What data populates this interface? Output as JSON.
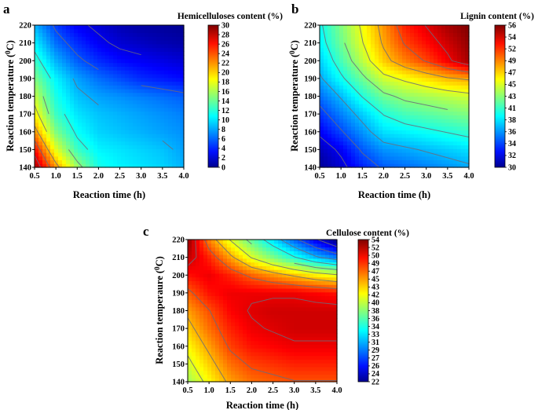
{
  "chart_data": [
    {
      "type": "heatmap",
      "panel": "a",
      "title": "Hemicelluloses content (%)",
      "xlabel": "Reaction time (h)",
      "ylabel_prefix": "Reaction temperature (",
      "ylabel_sup": "0",
      "ylabel_suffix": "C)",
      "xlim": [
        0.5,
        4.0
      ],
      "ylim": [
        140,
        220
      ],
      "x_ticks": [
        "0.5",
        "1.0",
        "1.5",
        "2.0",
        "2.5",
        "3.0",
        "3.5",
        "4.0"
      ],
      "y_ticks": [
        "140",
        "150",
        "160",
        "170",
        "180",
        "190",
        "200",
        "210",
        "220"
      ],
      "colorbar_range": [
        0,
        30
      ],
      "colorbar_ticks": [
        "0",
        "2",
        "4",
        "6",
        "8",
        "10",
        "12",
        "14",
        "16",
        "18",
        "20",
        "22",
        "24",
        "26",
        "28",
        "30"
      ],
      "x": [
        0.5,
        1.0,
        1.5,
        2.0,
        2.5,
        3.0,
        3.5,
        4.0
      ],
      "y": [
        140,
        150,
        160,
        170,
        180,
        190,
        200,
        210,
        220
      ],
      "z": [
        [
          29,
          22,
          16,
          12,
          11,
          10.5,
          10,
          9
        ],
        [
          26,
          18,
          13,
          11,
          10.5,
          10,
          9.5,
          8.5
        ],
        [
          22,
          15,
          11.5,
          10,
          9.5,
          9,
          8.5,
          8
        ],
        [
          19,
          13,
          10.5,
          9.5,
          9,
          8.5,
          8,
          7.5
        ],
        [
          17,
          12,
          9.5,
          8.5,
          8,
          7.5,
          7,
          6.5
        ],
        [
          15,
          11,
          8.5,
          7,
          6,
          5,
          4.5,
          4
        ],
        [
          13,
          9,
          6.5,
          5,
          4,
          3.5,
          3,
          2.5
        ],
        [
          11,
          7,
          5,
          3.5,
          2.5,
          2,
          1.5,
          1.2
        ],
        [
          9,
          5.5,
          3.5,
          2.5,
          1.5,
          1,
          0.8,
          0.5
        ]
      ]
    },
    {
      "type": "heatmap",
      "panel": "b",
      "title": "Lignin content (%)",
      "xlabel": "Reaction time (h)",
      "ylabel_prefix": "Reaction temperature (",
      "ylabel_sup": "0",
      "ylabel_suffix": "C)",
      "xlim": [
        0.5,
        4.0
      ],
      "ylim": [
        140,
        220
      ],
      "x_ticks": [
        "0.5",
        "1.0",
        "1.5",
        "2.0",
        "2.5",
        "3.0",
        "3.5",
        "4.0"
      ],
      "y_ticks": [
        "140",
        "150",
        "160",
        "170",
        "180",
        "190",
        "200",
        "210",
        "220"
      ],
      "colorbar_range": [
        30,
        56
      ],
      "colorbar_ticks": [
        "30",
        "32",
        "34",
        "36",
        "38",
        "41",
        "43",
        "45",
        "47",
        "49",
        "52",
        "54",
        "56"
      ],
      "x": [
        0.5,
        1.0,
        1.5,
        2.0,
        2.5,
        3.0,
        3.5,
        4.0
      ],
      "y": [
        140,
        150,
        160,
        170,
        180,
        190,
        200,
        210,
        220
      ],
      "z": [
        [
          30.5,
          32,
          34,
          35.5,
          36,
          36.5,
          37,
          37.5
        ],
        [
          31.5,
          33,
          35.5,
          37,
          37.5,
          38,
          38.5,
          39
        ],
        [
          33,
          35,
          37,
          39,
          39.5,
          40,
          40.5,
          41
        ],
        [
          34.5,
          36.5,
          38.5,
          40.5,
          41.5,
          42,
          42.5,
          43
        ],
        [
          36,
          38,
          40.5,
          42.5,
          43.5,
          44,
          44.5,
          45
        ],
        [
          37.5,
          40,
          42.5,
          45,
          46,
          47,
          48,
          48.5
        ],
        [
          38.5,
          41.5,
          44.5,
          47.5,
          49.5,
          51,
          53,
          55
        ],
        [
          39.5,
          42.5,
          45.5,
          48.5,
          51,
          52.5,
          54,
          55.5
        ],
        [
          40,
          43,
          46,
          49,
          52,
          53.5,
          55,
          56
        ]
      ]
    },
    {
      "type": "heatmap",
      "panel": "c",
      "title": "Cellulose content (%)",
      "xlabel": "Reaction time (h)",
      "ylabel_prefix": "Reaction temperaure (",
      "ylabel_sup": "0",
      "ylabel_suffix": "C)",
      "xlim": [
        0.5,
        4.0
      ],
      "ylim": [
        140,
        220
      ],
      "x_ticks": [
        "0.5",
        "1.0",
        "1.5",
        "2.0",
        "2.5",
        "3.0",
        "3.5",
        "4.0"
      ],
      "y_ticks": [
        "140",
        "150",
        "160",
        "170",
        "180",
        "190",
        "200",
        "210",
        "220"
      ],
      "colorbar_range": [
        22,
        54
      ],
      "colorbar_ticks": [
        "22",
        "24",
        "26",
        "27",
        "29",
        "31",
        "33",
        "34",
        "36",
        "38",
        "40",
        "42",
        "43",
        "45",
        "47",
        "49",
        "50",
        "52",
        "54"
      ],
      "x": [
        0.5,
        1.0,
        1.5,
        2.0,
        2.5,
        3.0,
        3.5,
        4.0
      ],
      "y": [
        140,
        150,
        160,
        170,
        180,
        190,
        200,
        210,
        220
      ],
      "z": [
        [
          39,
          42,
          45,
          46.5,
          47,
          47.5,
          47.5,
          47.5
        ],
        [
          40.5,
          43.5,
          46.5,
          48,
          48.5,
          49,
          49,
          49
        ],
        [
          42,
          45,
          48,
          49.5,
          50,
          50.5,
          50.5,
          50.5
        ],
        [
          43.5,
          46.5,
          49,
          50.5,
          51,
          51.5,
          51.5,
          51.5
        ],
        [
          45,
          47.5,
          50,
          51,
          51.5,
          51.5,
          51.5,
          51.5
        ],
        [
          47,
          49.5,
          50.5,
          50.5,
          50.5,
          50.5,
          50,
          49.5
        ],
        [
          49.5,
          50.5,
          49,
          47,
          45.5,
          44,
          42.5,
          41.5
        ],
        [
          52,
          49,
          45,
          41,
          38,
          35,
          32,
          30
        ],
        [
          53.5,
          46,
          41,
          37,
          33,
          29,
          25.5,
          22
        ]
      ]
    }
  ]
}
